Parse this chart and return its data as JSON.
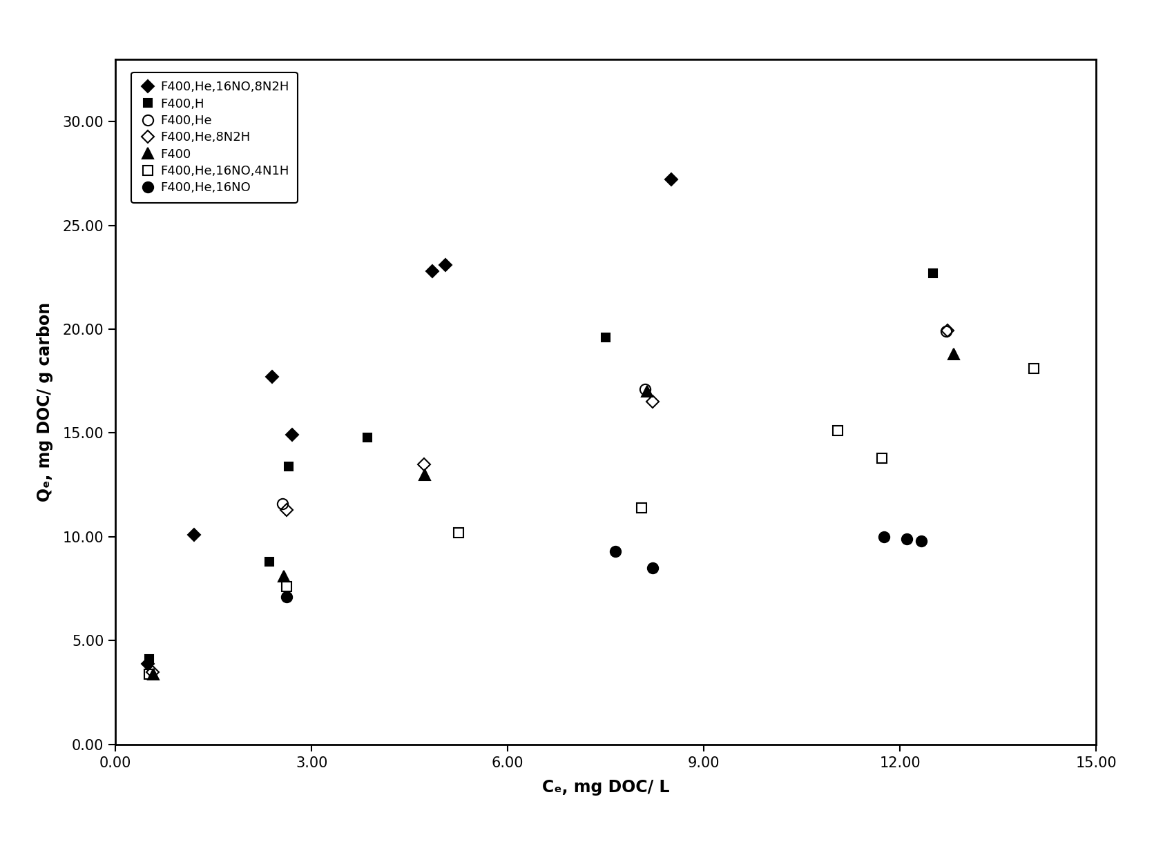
{
  "series": [
    {
      "label": "F400,He,16NO,8N2H",
      "marker": "D",
      "color": "black",
      "fillstyle": "full",
      "markersize": 9,
      "x": [
        0.5,
        1.2,
        2.4,
        2.7,
        4.85,
        5.05,
        8.5
      ],
      "y": [
        3.9,
        10.1,
        17.7,
        14.9,
        22.8,
        23.1,
        27.2
      ]
    },
    {
      "label": "F400,H",
      "marker": "s",
      "color": "black",
      "fillstyle": "full",
      "markersize": 9,
      "x": [
        0.52,
        2.35,
        2.65,
        3.85,
        7.5,
        12.5
      ],
      "y": [
        4.1,
        8.8,
        13.4,
        14.8,
        19.6,
        22.7
      ]
    },
    {
      "label": "F400,He",
      "marker": "o",
      "color": "black",
      "fillstyle": "none",
      "markersize": 11,
      "x": [
        2.55,
        8.1,
        12.7
      ],
      "y": [
        11.6,
        17.1,
        19.9
      ]
    },
    {
      "label": "F400,He,8N2H",
      "marker": "D",
      "color": "black",
      "fillstyle": "none",
      "markersize": 9,
      "x": [
        0.57,
        2.62,
        4.72,
        8.22,
        12.72
      ],
      "y": [
        3.5,
        11.3,
        13.5,
        16.5,
        19.95
      ]
    },
    {
      "label": "F400",
      "marker": "^",
      "color": "black",
      "fillstyle": "full",
      "markersize": 11,
      "x": [
        0.58,
        2.58,
        4.73,
        8.13,
        12.82
      ],
      "y": [
        3.4,
        8.1,
        13.0,
        17.0,
        18.8
      ]
    },
    {
      "label": "F400,He,16NO,4N1H",
      "marker": "s",
      "color": "black",
      "fillstyle": "none",
      "markersize": 10,
      "x": [
        0.52,
        2.62,
        5.25,
        8.05,
        11.05,
        11.72,
        14.05
      ],
      "y": [
        3.4,
        7.6,
        10.2,
        11.4,
        15.1,
        13.8,
        18.1
      ]
    },
    {
      "label": "F400,He,16NO",
      "marker": "o",
      "color": "black",
      "fillstyle": "full",
      "markersize": 11,
      "x": [
        2.62,
        7.65,
        8.22,
        11.75,
        12.1,
        12.32
      ],
      "y": [
        7.1,
        9.3,
        8.5,
        10.0,
        9.9,
        9.8
      ]
    }
  ],
  "xlabel": "Cₑ, mg DOC/ L",
  "ylabel": "Qₑ, mg DOC/ g carbon",
  "xlim": [
    0.0,
    15.0
  ],
  "ylim": [
    0.0,
    33.0
  ],
  "xticks": [
    0.0,
    3.0,
    6.0,
    9.0,
    12.0,
    15.0
  ],
  "yticks": [
    0.0,
    5.0,
    10.0,
    15.0,
    20.0,
    25.0,
    30.0
  ],
  "background_color": "#ffffff",
  "figsize": [
    16.71,
    12.26
  ],
  "dpi": 100
}
